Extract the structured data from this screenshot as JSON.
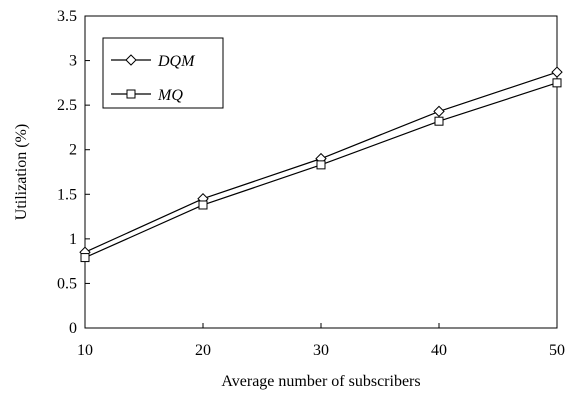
{
  "chart_data": {
    "type": "line",
    "title": "",
    "xlabel": "Average number of subscribers",
    "ylabel": "Utilization (%)",
    "x": [
      10,
      20,
      30,
      40,
      50
    ],
    "xlim": [
      10,
      50
    ],
    "ylim": [
      0,
      3.5
    ],
    "xticks": [
      "10",
      "20",
      "30",
      "40",
      "50"
    ],
    "yticks": [
      "0",
      "0.5",
      "1",
      "1.5",
      "2",
      "2.5",
      "3",
      "3.5"
    ],
    "grid": false,
    "legend_position": "top-left",
    "series": [
      {
        "name": "DQM",
        "marker": "diamond",
        "values": [
          0.85,
          1.45,
          1.9,
          2.43,
          2.87
        ]
      },
      {
        "name": "MQ",
        "marker": "square",
        "values": [
          0.79,
          1.38,
          1.83,
          2.32,
          2.75
        ]
      }
    ]
  }
}
